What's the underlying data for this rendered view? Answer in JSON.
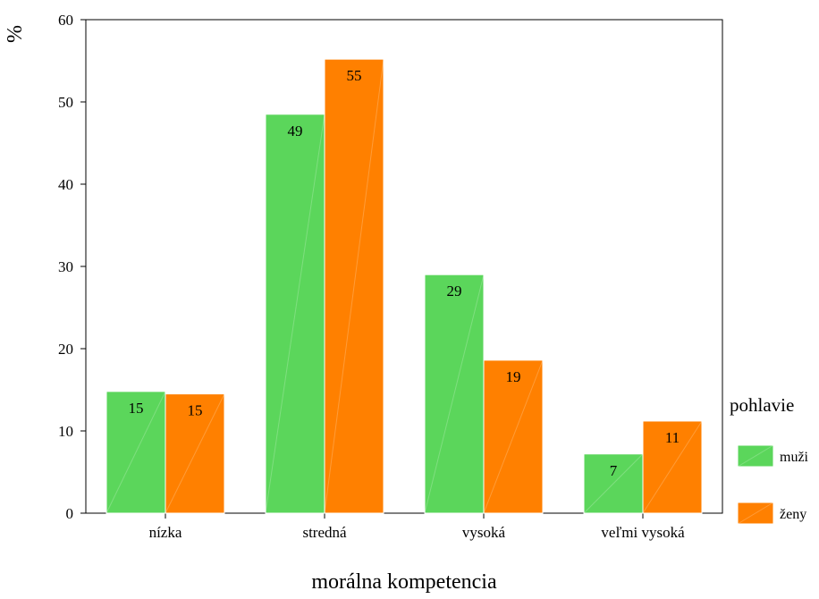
{
  "chart_data": {
    "type": "bar",
    "xlabel": "morálna kompetencia",
    "ylabel": "%",
    "ylim": [
      0,
      60
    ],
    "yticks": [
      0,
      10,
      20,
      30,
      40,
      50,
      60
    ],
    "grid": false,
    "categories": [
      "nízka",
      "stredná",
      "vysoká",
      "veľmi vysoká"
    ],
    "series": [
      {
        "name": "muži",
        "color": "#5bd65b",
        "values": [
          14.8,
          48.5,
          29.0,
          7.2
        ],
        "labels": [
          "15",
          "49",
          "29",
          "7"
        ]
      },
      {
        "name": "ženy",
        "color": "#ff8000",
        "values": [
          14.5,
          55.2,
          18.6,
          11.2
        ],
        "labels": [
          "15",
          "55",
          "19",
          "11"
        ]
      }
    ],
    "legend": {
      "title": "pohlavie",
      "position": "right"
    }
  }
}
